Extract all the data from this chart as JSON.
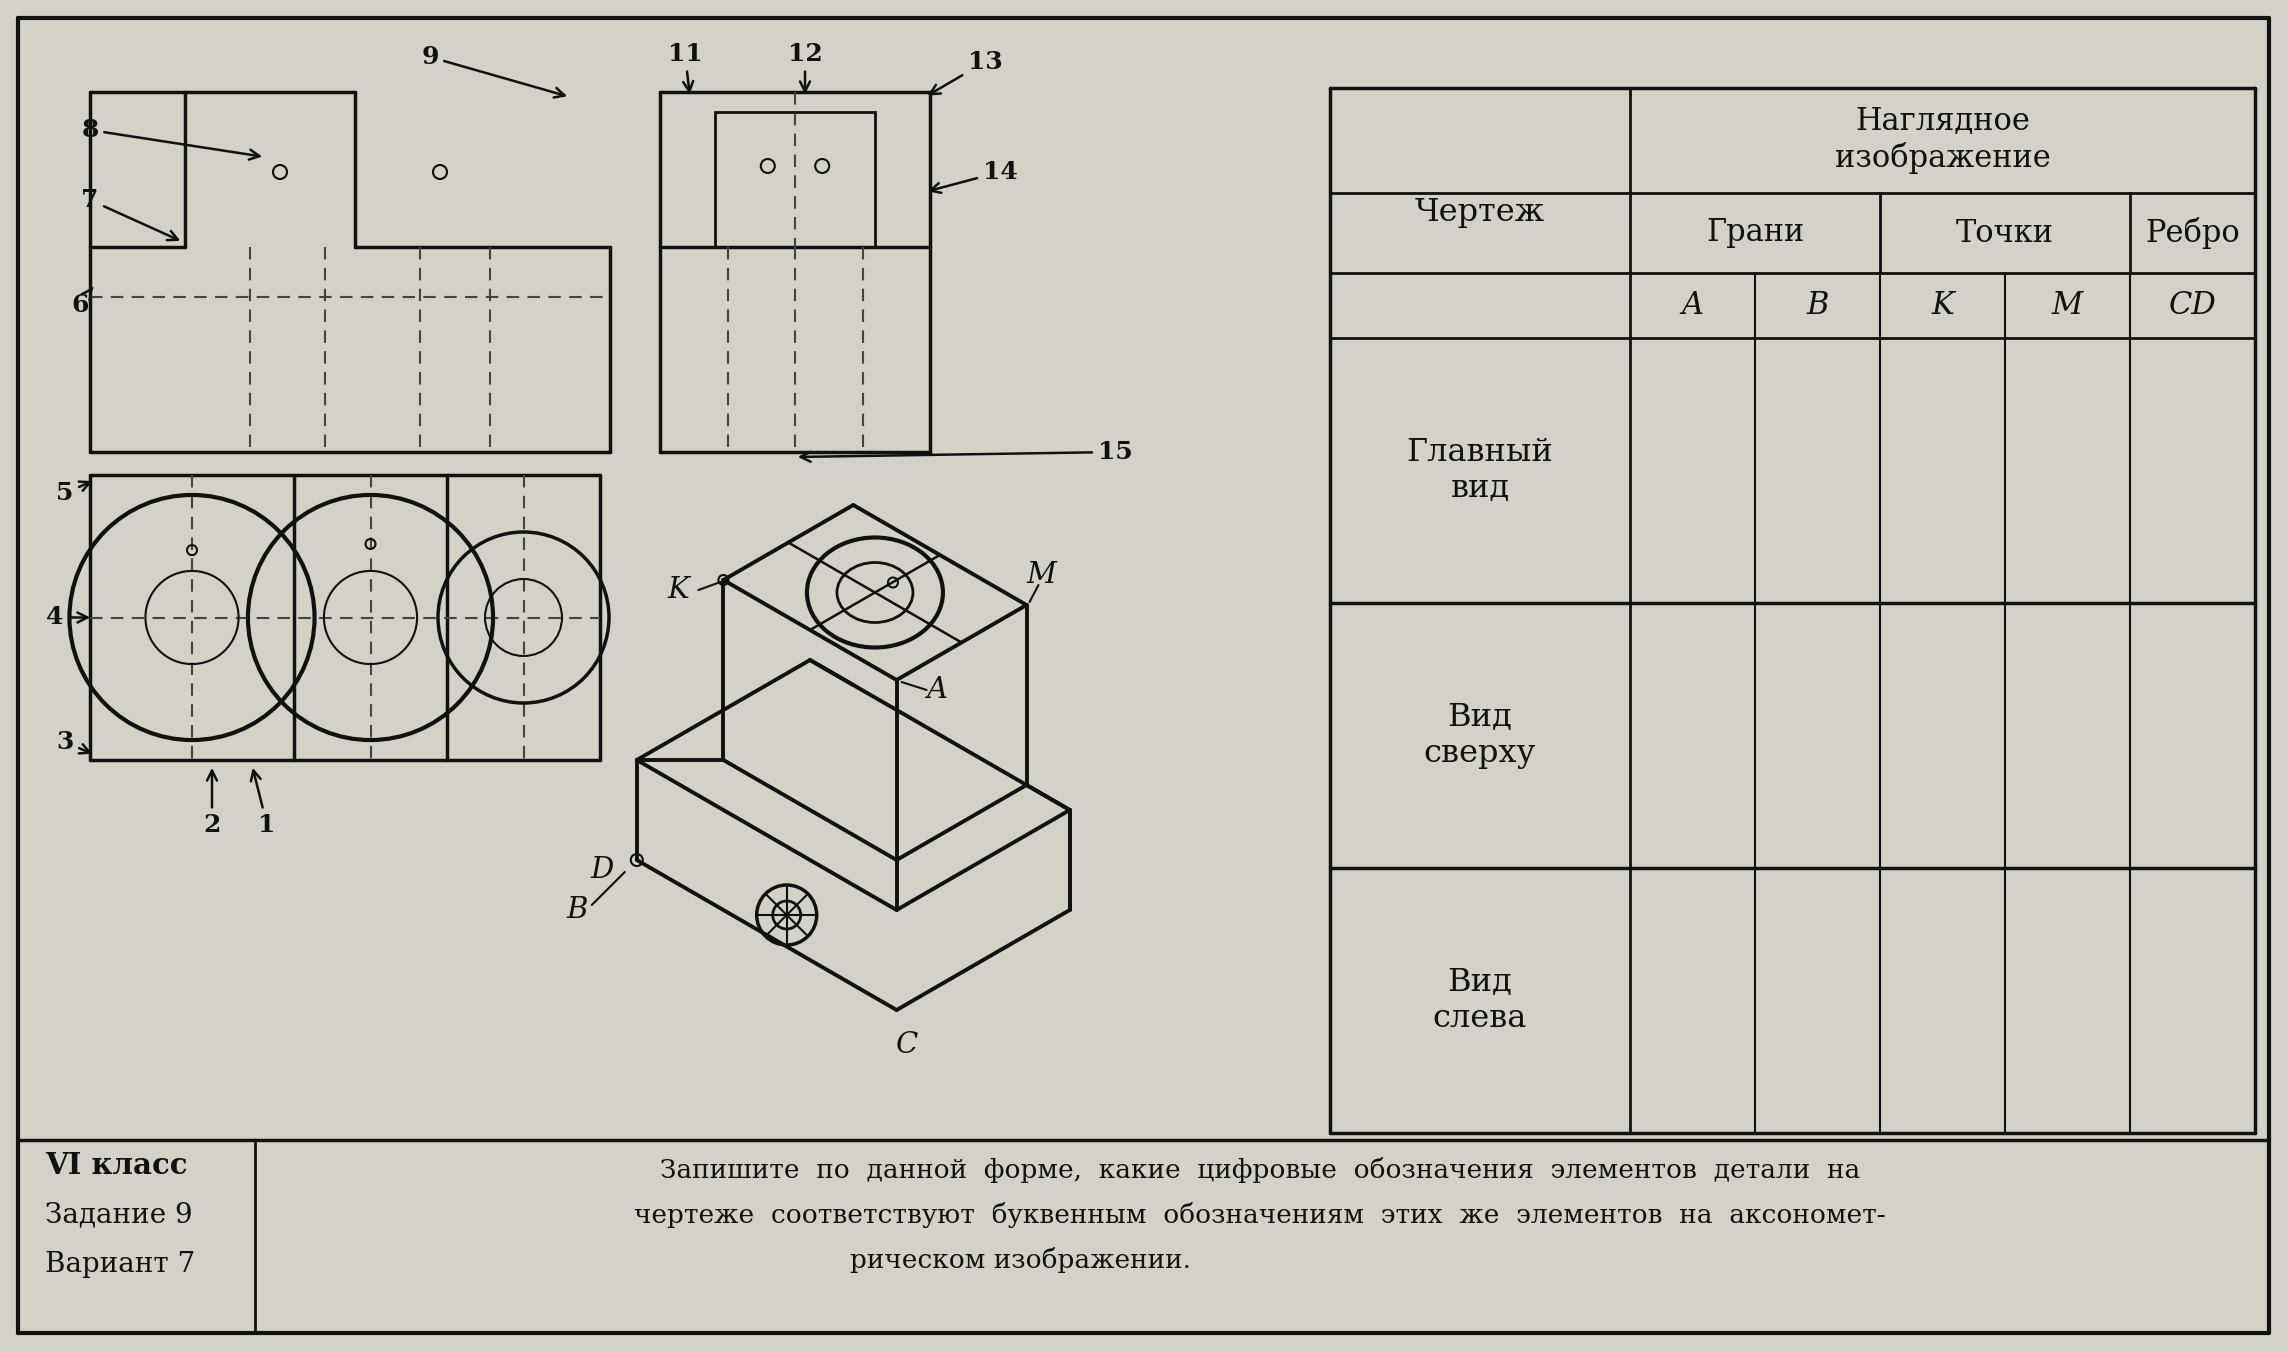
{
  "bg_color": "#d4d1c8",
  "text_color": "#111111",
  "table_header_row1": "Наглядное\nизображение",
  "table_col1": "Чертеж",
  "table_col_grany": "Грани",
  "table_col_tochki": "Точки",
  "table_col_rebro": "Ребро",
  "table_row_A": "A",
  "table_row_B": "B",
  "table_row_K": "K",
  "table_row_M": "M",
  "table_row_CD": "CD",
  "row1_label": "Главный\nвид",
  "row2_label": "Вид\nсверху",
  "row3_label": "Вид\nслева",
  "bottom_class": "VI класс",
  "bottom_task": "Задание 9",
  "bottom_variant": "Вариант 7",
  "bottom_line1": "Запишите  по  данной  форме,  какие  цифровые  обозначения  элементов  детали  на",
  "bottom_line2": "чертеже  соответствуют  буквенным  обозначениям  этих  же  элементов  на  аксономет-",
  "bottom_line3": "рическом изображении."
}
